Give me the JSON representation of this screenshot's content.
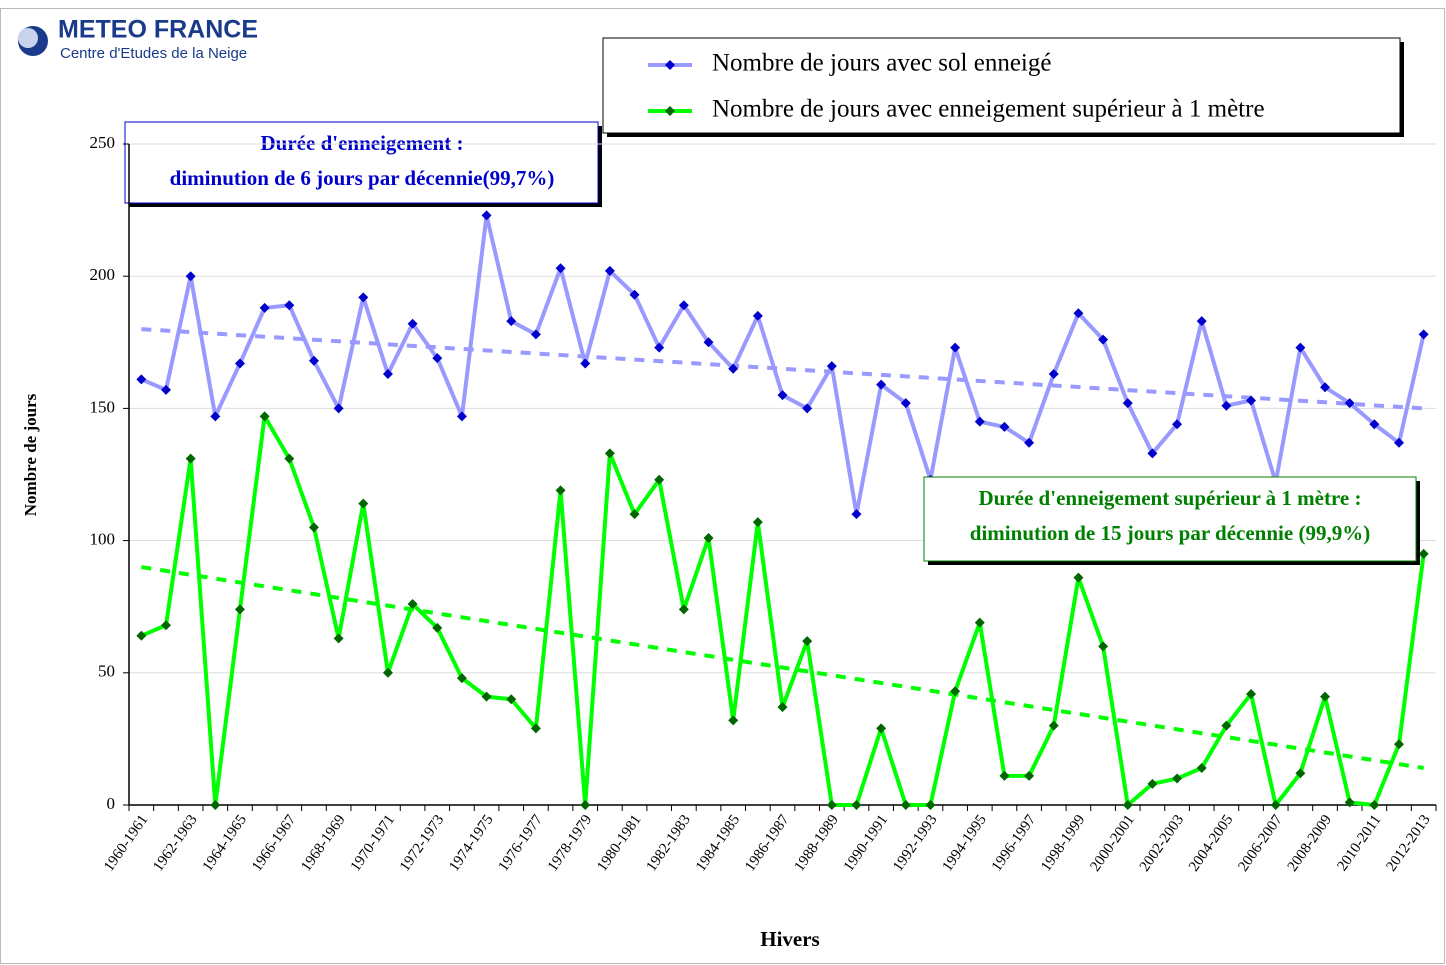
{
  "logo": {
    "title": "METEO FRANCE",
    "subtitle": "Centre d'Etudes de la Neige"
  },
  "chart_data": {
    "type": "line",
    "xlabel": "Hivers",
    "ylabel": "Nombre de jours",
    "categories": [
      "1960-1961",
      null,
      "1962-1963",
      null,
      "1964-1965",
      null,
      "1966-1967",
      null,
      "1968-1969",
      null,
      "1970-1971",
      null,
      "1972-1973",
      null,
      "1974-1975",
      null,
      "1976-1977",
      null,
      "1978-1979",
      null,
      "1980-1981",
      null,
      "1982-1983",
      null,
      "1984-1985",
      null,
      "1986-1987",
      null,
      "1988-1989",
      null,
      "1990-1991",
      null,
      "1992-1993",
      null,
      "1994-1995",
      null,
      "1996-1997",
      null,
      "1998-1999",
      null,
      "2000-2001",
      null,
      "2002-2003",
      null,
      "2004-2005",
      null,
      "2006-2007",
      null,
      "2008-2009",
      null,
      "2010-2011",
      null,
      "2012-2013"
    ],
    "series": [
      {
        "name": "Nombre de jours avec sol enneigé",
        "color": "#9999ff",
        "marker_color": "#0000cc",
        "values": [
          161,
          157,
          200,
          147,
          167,
          188,
          189,
          168,
          150,
          192,
          163,
          182,
          169,
          147,
          223,
          183,
          178,
          203,
          167,
          202,
          193,
          173,
          189,
          175,
          165,
          185,
          155,
          150,
          166,
          110,
          159,
          152,
          123,
          173,
          145,
          143,
          137,
          163,
          186,
          176,
          152,
          133,
          144,
          183,
          151,
          153,
          122,
          173,
          158,
          152,
          144,
          137,
          178
        ],
        "trend": [
          180,
          150
        ]
      },
      {
        "name": "Nombre de jours avec enneigement supérieur à 1 mètre",
        "color": "#00ff00",
        "marker_color": "#006600",
        "values": [
          64,
          68,
          131,
          0,
          74,
          147,
          131,
          105,
          63,
          114,
          50,
          76,
          67,
          48,
          41,
          40,
          29,
          119,
          0,
          133,
          110,
          123,
          74,
          101,
          32,
          107,
          37,
          62,
          0,
          0,
          29,
          0,
          0,
          43,
          69,
          11,
          11,
          30,
          86,
          60,
          0,
          8,
          10,
          14,
          30,
          42,
          0,
          12,
          41,
          1,
          0,
          23,
          95
        ],
        "trend": [
          90,
          14
        ]
      }
    ],
    "annotations": [
      {
        "lines": [
          "Durée d'enneigement :",
          "diminution de 6 jours par décennie(99,7%)"
        ],
        "color": "#0000cc"
      },
      {
        "lines": [
          "Durée d'enneigement supérieur à 1 mètre :",
          "diminution de 15 jours par décennie (99,9%)"
        ],
        "color": "#008000"
      }
    ],
    "ylim": [
      0,
      250
    ],
    "yticks": [
      0,
      50,
      100,
      150,
      200,
      250
    ],
    "grid": true
  }
}
